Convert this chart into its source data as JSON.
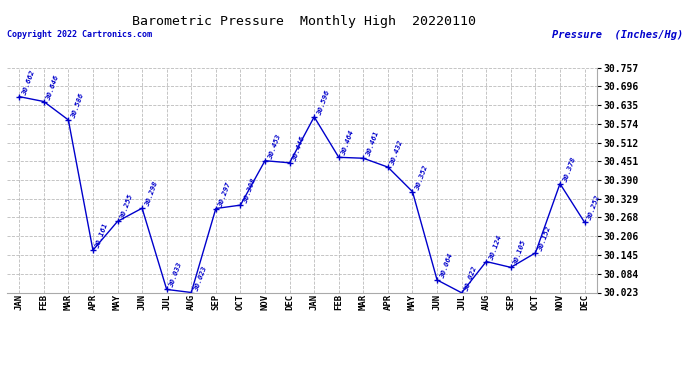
{
  "title": "Barometric Pressure  Monthly High  20220110",
  "ylabel": "Pressure  (Inches/Hg)",
  "copyright": "Copyright 2022 Cartronics.com",
  "months": [
    "JAN",
    "FEB",
    "MAR",
    "APR",
    "MAY",
    "JUN",
    "JUL",
    "AUG",
    "SEP",
    "OCT",
    "NOV",
    "DEC",
    "JAN",
    "FEB",
    "MAR",
    "APR",
    "MAY",
    "JUN",
    "JUL",
    "AUG",
    "SEP",
    "OCT",
    "NOV",
    "DEC"
  ],
  "values": [
    30.662,
    30.646,
    30.586,
    30.161,
    30.255,
    30.298,
    30.033,
    30.023,
    30.297,
    30.308,
    30.453,
    30.446,
    30.596,
    30.464,
    30.461,
    30.432,
    30.352,
    30.064,
    30.022,
    30.124,
    30.105,
    30.152,
    30.378,
    30.252
  ],
  "ylim_min": 30.023,
  "ylim_max": 30.757,
  "yticks": [
    30.023,
    30.084,
    30.145,
    30.206,
    30.268,
    30.329,
    30.39,
    30.451,
    30.512,
    30.574,
    30.635,
    30.696,
    30.757
  ],
  "line_color": "#0000cc",
  "marker_color": "#0000cc",
  "text_color": "#0000cc",
  "grid_color": "#bbbbbb",
  "bg_color": "#ffffff",
  "title_color": "#000000",
  "copyright_color": "#0000cc",
  "ylabel_color": "#0000cc"
}
